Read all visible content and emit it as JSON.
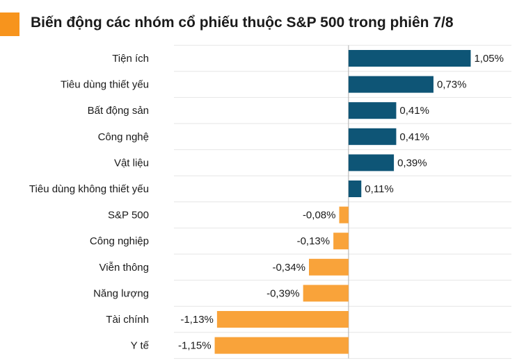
{
  "header": {
    "title": "Biến động các nhóm cổ phiếu thuộc S&P 500 trong phiên 7/8",
    "accent_color": "#f7941d"
  },
  "chart_data": {
    "type": "bar",
    "orientation": "horizontal",
    "title": "Biến động các nhóm cổ phiếu thuộc S&P 500 trong phiên 7/8",
    "categories": [
      "Tiện ích",
      "Tiêu dùng thiết yếu",
      "Bất động sản",
      "Công nghệ",
      "Vật liệu",
      "Tiêu dùng không thiết yếu",
      "S&P 500",
      "Công nghiệp",
      "Viễn thông",
      "Năng lượng",
      "Tài chính",
      "Y tế"
    ],
    "values": [
      1.05,
      0.73,
      0.41,
      0.41,
      0.39,
      0.11,
      -0.08,
      -0.13,
      -0.34,
      -0.39,
      -1.13,
      -1.15
    ],
    "value_labels": [
      "1,05%",
      "0,73%",
      "0,41%",
      "0,41%",
      "0,39%",
      "0,11%",
      "-0,08%",
      "-0,13%",
      "-0,34%",
      "-0,39%",
      "-1,13%",
      "-1,15%"
    ],
    "xlim": [
      -1.5,
      1.4
    ],
    "xlabel": "",
    "ylabel": "",
    "grid": "horizontal separators",
    "legend": "none",
    "positive_color": "#0e5576",
    "negative_color": "#f9a33a"
  }
}
